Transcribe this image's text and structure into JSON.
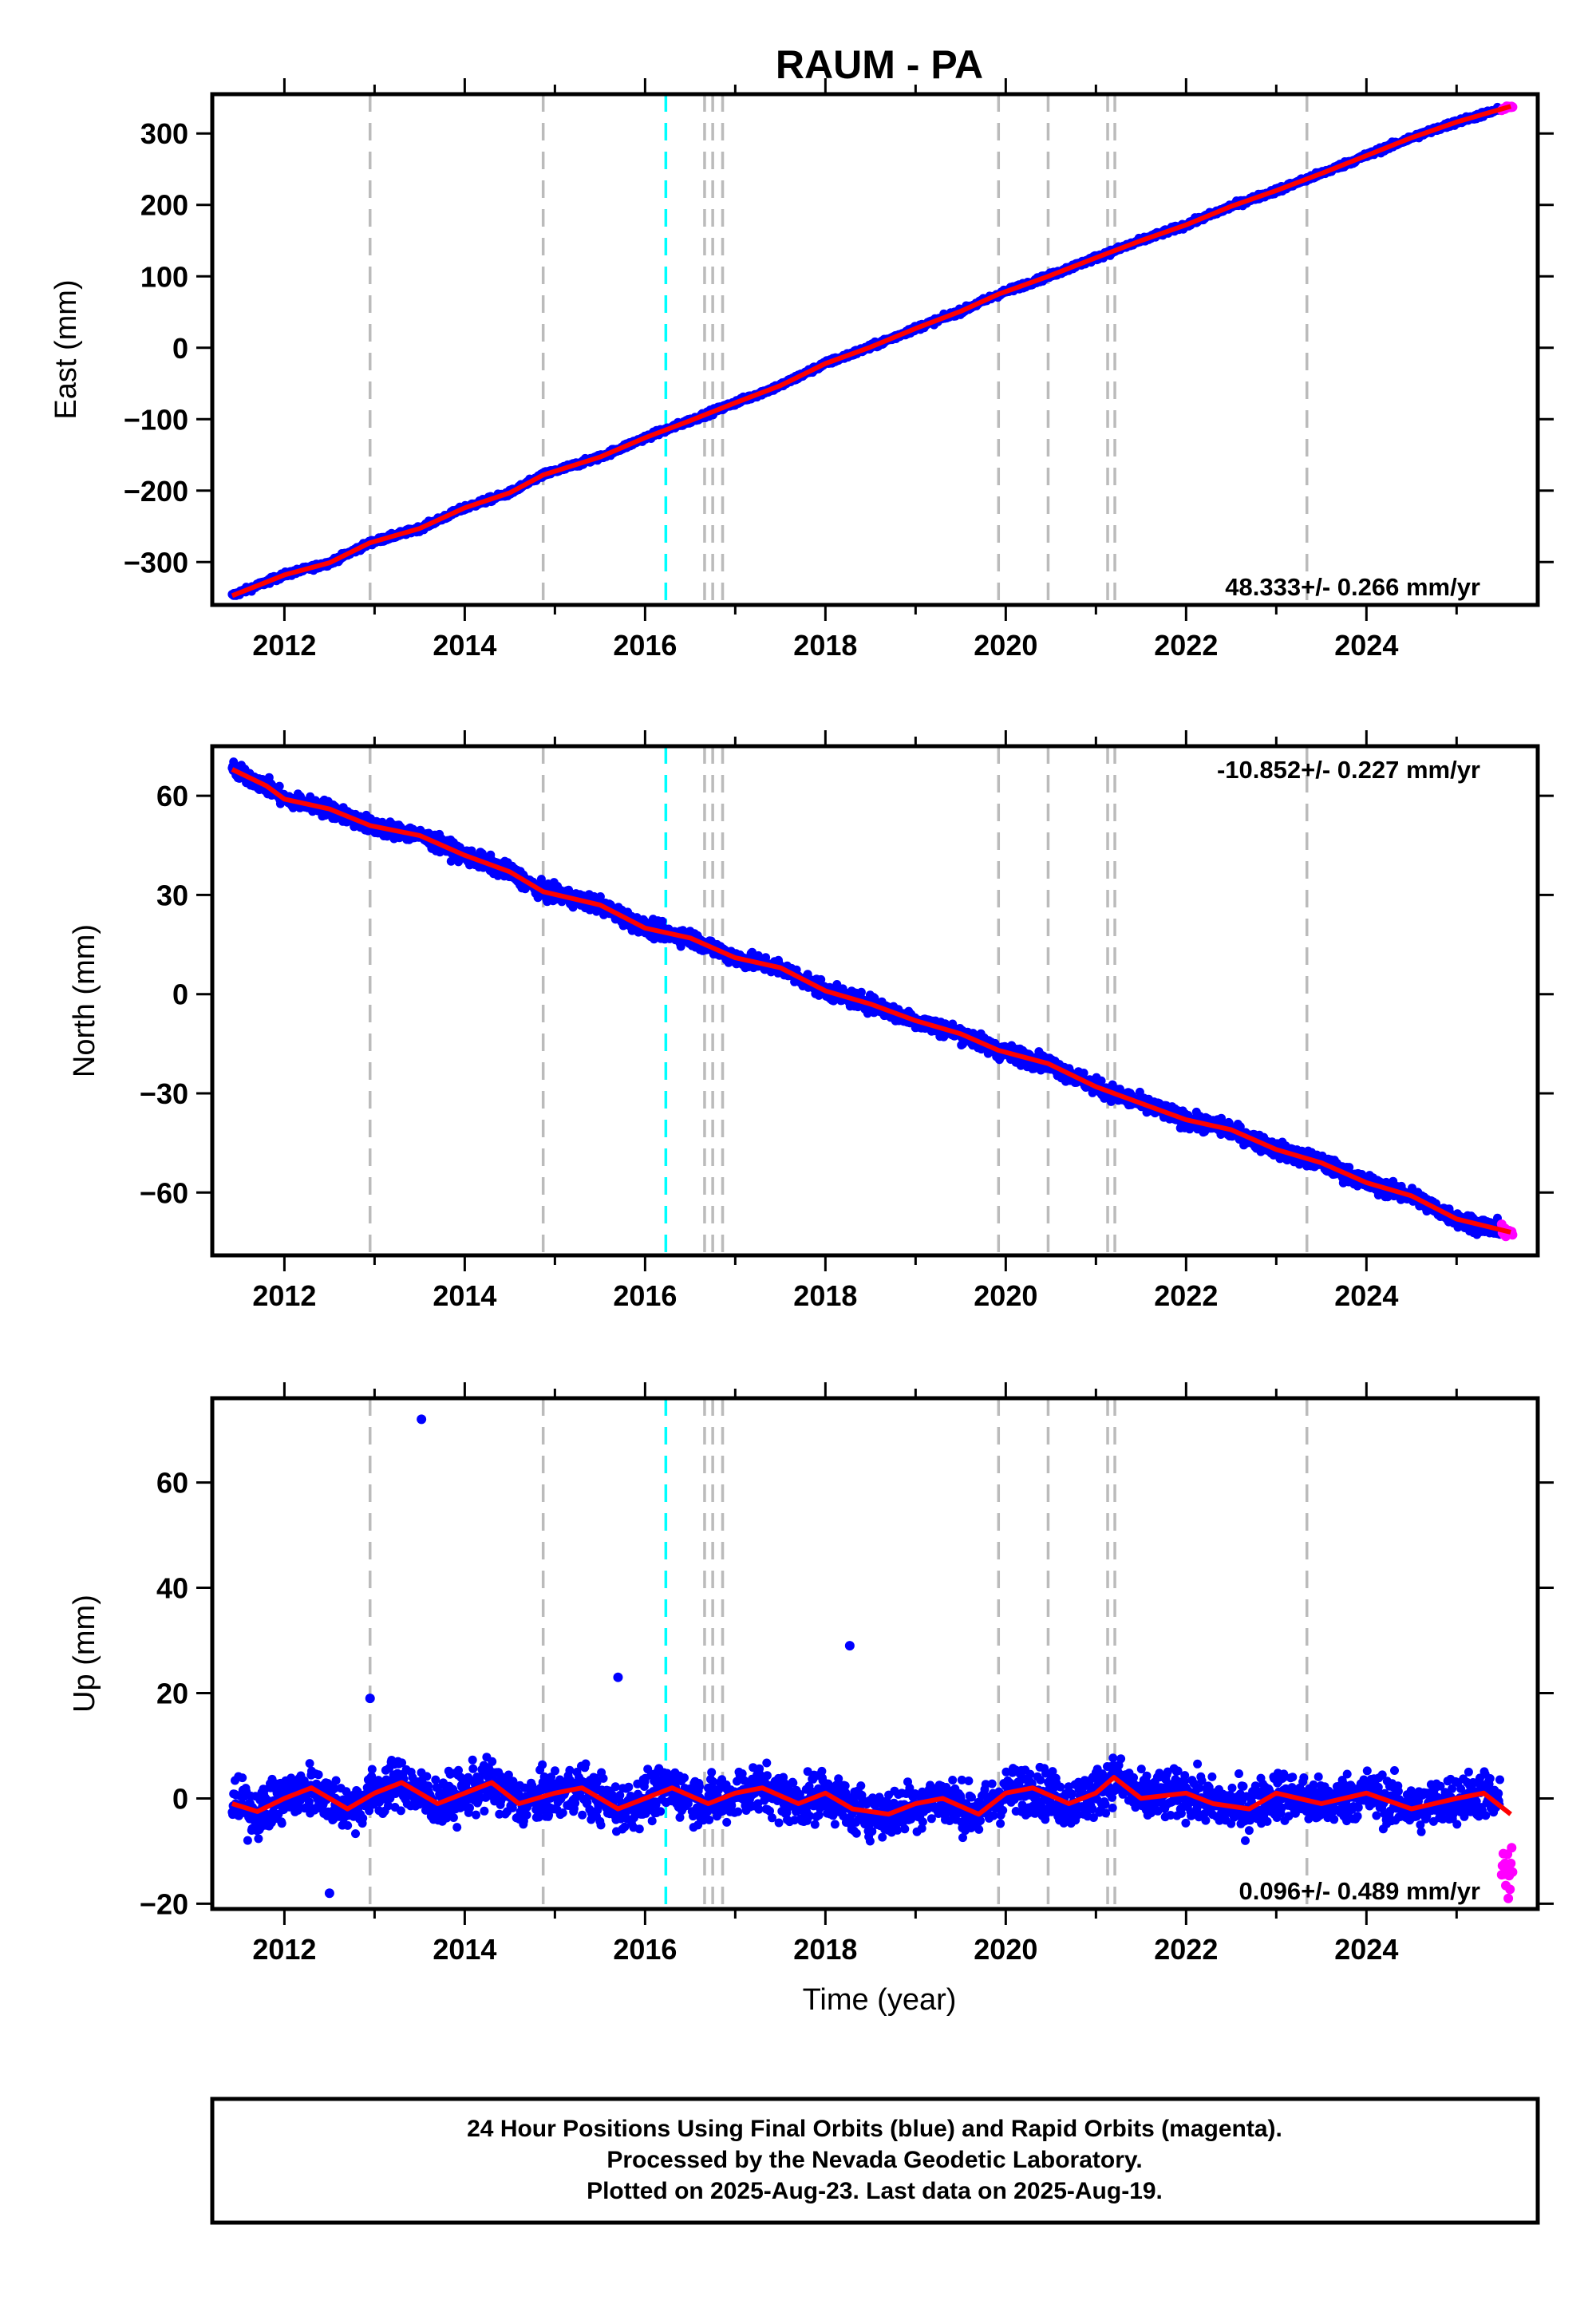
{
  "title": "RAUM - PA",
  "xlabel": "Time (year)",
  "footer": [
    "24 Hour Positions Using Final Orbits (blue) and Rapid Orbits (magenta).",
    "Processed by the Nevada Geodetic Laboratory.",
    "Plotted on 2025-Aug-23. Last data on 2025-Aug-19."
  ],
  "colors": {
    "final": "#0000ff",
    "rapid": "#ff00ff",
    "model": "#ff0000",
    "event_gray": "#bbbbbb",
    "event_cyan": "#00ffff"
  },
  "events_gray": [
    2012.95,
    2014.87,
    2016.66,
    2016.75,
    2016.86,
    2019.92,
    2020.47,
    2021.13,
    2021.21,
    2023.34
  ],
  "events_cyan": [
    2016.23
  ],
  "chart_data": [
    {
      "type": "scatter",
      "ylabel": "East (mm)",
      "xlim": [
        2011.2,
        2025.9
      ],
      "ylim": [
        -360,
        355
      ],
      "xticks": [
        "2012",
        "2014",
        "2016",
        "2018",
        "2020",
        "2022",
        "2024"
      ],
      "yticks": [
        "300",
        "200",
        "100",
        "0",
        "−100",
        "−200",
        "−300"
      ],
      "rate_label": "48.333+/- 0.266 mm/yr",
      "rate_pos": "bottom-right",
      "series": [
        {
          "values": [
            [
              2011.42,
              -347
            ],
            [
              2012.0,
              -318
            ],
            [
              2012.5,
              -301
            ],
            [
              2012.95,
              -273
            ],
            [
              2013.5,
              -253
            ],
            [
              2014.0,
              -224
            ],
            [
              2014.5,
              -203
            ],
            [
              2014.87,
              -178
            ],
            [
              2015.5,
              -153
            ],
            [
              2016.0,
              -126
            ],
            [
              2016.5,
              -102
            ],
            [
              2017.0,
              -77
            ],
            [
              2017.5,
              -53
            ],
            [
              2018.0,
              -22
            ],
            [
              2018.5,
              1
            ],
            [
              2019.0,
              27
            ],
            [
              2019.5,
              51
            ],
            [
              2019.92,
              75
            ],
            [
              2020.47,
              100
            ],
            [
              2021.0,
              126
            ],
            [
              2021.5,
              150
            ],
            [
              2022.0,
              172
            ],
            [
              2022.5,
              198
            ],
            [
              2023.0,
              220
            ],
            [
              2023.5,
              244
            ],
            [
              2024.0,
              269
            ],
            [
              2024.5,
              294
            ],
            [
              2025.0,
              316
            ],
            [
              2025.6,
              338
            ]
          ]
        }
      ]
    },
    {
      "type": "scatter",
      "ylabel": "North (mm)",
      "xlim": [
        2011.2,
        2025.9
      ],
      "ylim": [
        -79,
        75
      ],
      "xticks": [
        "2012",
        "2014",
        "2016",
        "2018",
        "2020",
        "2022",
        "2024"
      ],
      "yticks": [
        "60",
        "30",
        "0",
        "−30",
        "−60"
      ],
      "rate_label": "-10.852+/- 0.227 mm/yr",
      "rate_pos": "top-right",
      "series": [
        {
          "values": [
            [
              2011.42,
              68
            ],
            [
              2011.8,
              63
            ],
            [
              2012.0,
              59
            ],
            [
              2012.5,
              56
            ],
            [
              2012.95,
              51
            ],
            [
              2013.5,
              48
            ],
            [
              2014.0,
              42
            ],
            [
              2014.5,
              37
            ],
            [
              2014.87,
              31
            ],
            [
              2015.5,
              27
            ],
            [
              2016.0,
              20
            ],
            [
              2016.5,
              17
            ],
            [
              2017.0,
              11
            ],
            [
              2017.5,
              8
            ],
            [
              2018.0,
              1
            ],
            [
              2018.5,
              -3
            ],
            [
              2019.0,
              -8
            ],
            [
              2019.5,
              -12
            ],
            [
              2019.92,
              -17
            ],
            [
              2020.47,
              -21
            ],
            [
              2021.0,
              -28
            ],
            [
              2021.5,
              -33
            ],
            [
              2022.0,
              -38
            ],
            [
              2022.5,
              -41
            ],
            [
              2023.0,
              -47
            ],
            [
              2023.5,
              -51
            ],
            [
              2024.0,
              -57
            ],
            [
              2024.5,
              -61
            ],
            [
              2025.0,
              -68
            ],
            [
              2025.6,
              -72
            ]
          ]
        }
      ]
    },
    {
      "type": "scatter",
      "ylabel": "Up (mm)",
      "xlim": [
        2011.2,
        2025.9
      ],
      "ylim": [
        -21,
        76
      ],
      "xticks": [
        "2012",
        "2014",
        "2016",
        "2018",
        "2020",
        "2022",
        "2024"
      ],
      "yticks": [
        "60",
        "40",
        "20",
        "0",
        "−20"
      ],
      "rate_label": "0.096+/- 0.489 mm/yr",
      "rate_pos": "bottom-right",
      "series": [
        {
          "values": [
            [
              2011.42,
              -1
            ],
            [
              2011.7,
              -2.5
            ],
            [
              2012.0,
              0
            ],
            [
              2012.3,
              2
            ],
            [
              2012.7,
              -2
            ],
            [
              2013.0,
              1
            ],
            [
              2013.3,
              3
            ],
            [
              2013.7,
              -1
            ],
            [
              2014.0,
              1
            ],
            [
              2014.3,
              3
            ],
            [
              2014.6,
              -1
            ],
            [
              2015.0,
              1
            ],
            [
              2015.3,
              2
            ],
            [
              2015.7,
              -2
            ],
            [
              2016.0,
              0
            ],
            [
              2016.3,
              2
            ],
            [
              2016.7,
              -1
            ],
            [
              2017.0,
              1
            ],
            [
              2017.3,
              2
            ],
            [
              2017.7,
              -1
            ],
            [
              2018.0,
              1
            ],
            [
              2018.3,
              -2
            ],
            [
              2018.7,
              -3
            ],
            [
              2019.0,
              -1
            ],
            [
              2019.3,
              0
            ],
            [
              2019.7,
              -3
            ],
            [
              2020.0,
              1
            ],
            [
              2020.3,
              2
            ],
            [
              2020.7,
              -1
            ],
            [
              2021.0,
              1
            ],
            [
              2021.2,
              4
            ],
            [
              2021.5,
              0
            ],
            [
              2022.0,
              1
            ],
            [
              2022.3,
              -1
            ],
            [
              2022.7,
              -2
            ],
            [
              2023.0,
              1
            ],
            [
              2023.5,
              -1
            ],
            [
              2024.0,
              1
            ],
            [
              2024.5,
              -2
            ],
            [
              2025.0,
              0
            ],
            [
              2025.3,
              1
            ],
            [
              2025.6,
              -3
            ]
          ]
        }
      ],
      "outliers": [
        [
          2013.52,
          72
        ],
        [
          2012.95,
          19
        ],
        [
          2015.7,
          23
        ],
        [
          2018.27,
          29
        ],
        [
          2012.5,
          -18
        ]
      ]
    }
  ]
}
